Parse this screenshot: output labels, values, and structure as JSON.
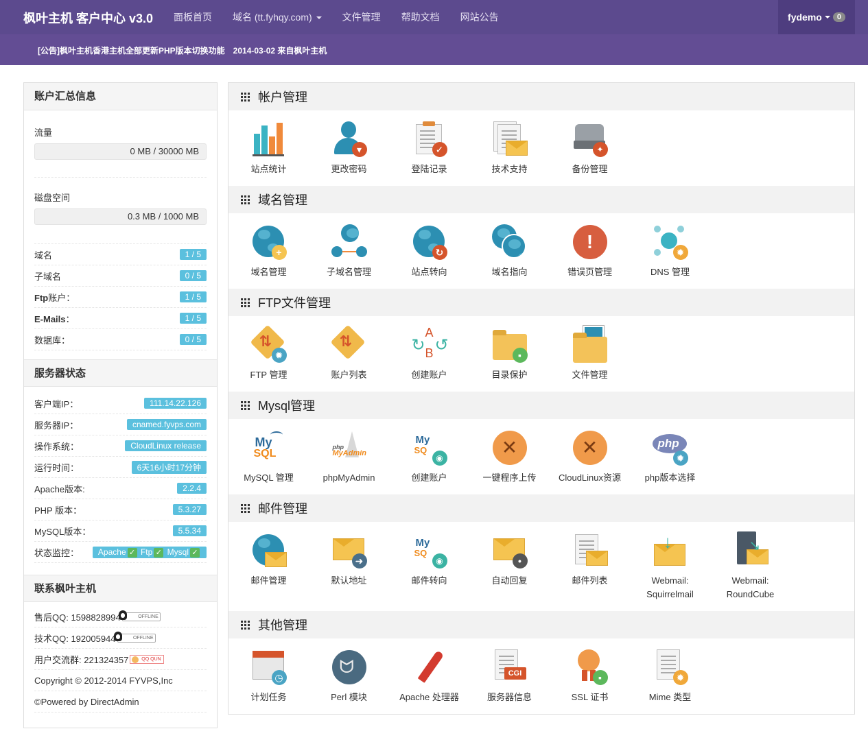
{
  "navbar": {
    "brand": "枫叶主机 客户中心 v3.0",
    "items": [
      {
        "label": "面板首页"
      },
      {
        "label": "域名 (tt.fyhqy.com)"
      },
      {
        "label": "文件管理"
      },
      {
        "label": "帮助文档"
      },
      {
        "label": "网站公告"
      }
    ],
    "user": "fydemo",
    "user_badge": "0"
  },
  "notice": {
    "text": "[公告]枫叶主机香港主机全部更新PHP版本切换功能",
    "date": "2014-03-02 来自枫叶主机"
  },
  "sidebar": {
    "account": {
      "title": "账户汇总信息",
      "traffic_label": "流量",
      "traffic_value": "0 MB / 30000 MB",
      "disk_label": "磁盘空间",
      "disk_value": "0.3 MB / 1000 MB",
      "rows": [
        {
          "label": "域名",
          "value": "1 / 5"
        },
        {
          "label": "子域名",
          "value": "0 / 5"
        },
        {
          "label_bold": "Ftp",
          "label": "账户：",
          "value": "1 / 5"
        },
        {
          "label_bold": "E-Mails",
          "label": "：",
          "value": "1 / 5"
        },
        {
          "label": "数据库：",
          "value": "0 / 5"
        }
      ]
    },
    "server": {
      "title": "服务器状态",
      "rows": [
        {
          "label": "客户端IP：",
          "value": "111.14.22.126"
        },
        {
          "label": "服务器IP：",
          "value": "cnamed.fyvps.com"
        },
        {
          "label": "操作系统：",
          "value": "CloudLinux release"
        },
        {
          "label": "运行时间：",
          "value": "6天16小时17分钟"
        },
        {
          "label": "Apache版本:",
          "value": "2.2.4"
        },
        {
          "label": "PHP 版本：",
          "value": "5.3.27"
        },
        {
          "label": "MySQL版本：",
          "value": "5.5.34"
        }
      ],
      "monitor_label": "状态监控：",
      "monitor": [
        "Apache",
        "Ftp",
        "Mysql"
      ]
    },
    "contact": {
      "title": "联系枫叶主机",
      "sales_qq": "售后QQ: 1598828994",
      "tech_qq": "技术QQ: 192005944",
      "group": "用户交流群: 221324357",
      "offline_badge": "OFFLINE",
      "qun_badge": "QQ QUN",
      "copyright": "Copyright © 2012-2014 FYVPS,Inc",
      "powered": "©Powered by DirectAdmin"
    }
  },
  "sections": [
    {
      "title": "帐户管理",
      "items": [
        "站点统计",
        "更改密码",
        "登陆记录",
        "技术支持",
        "备份管理"
      ]
    },
    {
      "title": "域名管理",
      "items": [
        "域名管理",
        "子域名管理",
        "站点转向",
        "域名指向",
        "错误页管理",
        "DNS 管理"
      ]
    },
    {
      "title": "FTP文件管理",
      "items": [
        "FTP 管理",
        "账户列表",
        "创建账户",
        "目录保护",
        "文件管理"
      ]
    },
    {
      "title": "Mysql管理",
      "items": [
        "MySQL 管理",
        "phpMyAdmin",
        "创建账户",
        "一键程序上传",
        "CloudLinux资源",
        "php版本选择"
      ]
    },
    {
      "title": "邮件管理",
      "items": [
        "邮件管理",
        "默认地址",
        "邮件转向",
        "自动回复",
        "邮件列表",
        "Webmail: Squirrelmail",
        "Webmail: RoundCube"
      ]
    },
    {
      "title": "其他管理",
      "items": [
        "计划任务",
        "Perl 模块",
        "Apache 处理器",
        "服务器信息",
        "SSL 证书",
        "Mime 类型"
      ]
    }
  ],
  "colors": {
    "navbar": "#5c4a8e",
    "notice": "#634d94",
    "pill": "#5bc0de",
    "accent_orange": "#f09a4a"
  }
}
